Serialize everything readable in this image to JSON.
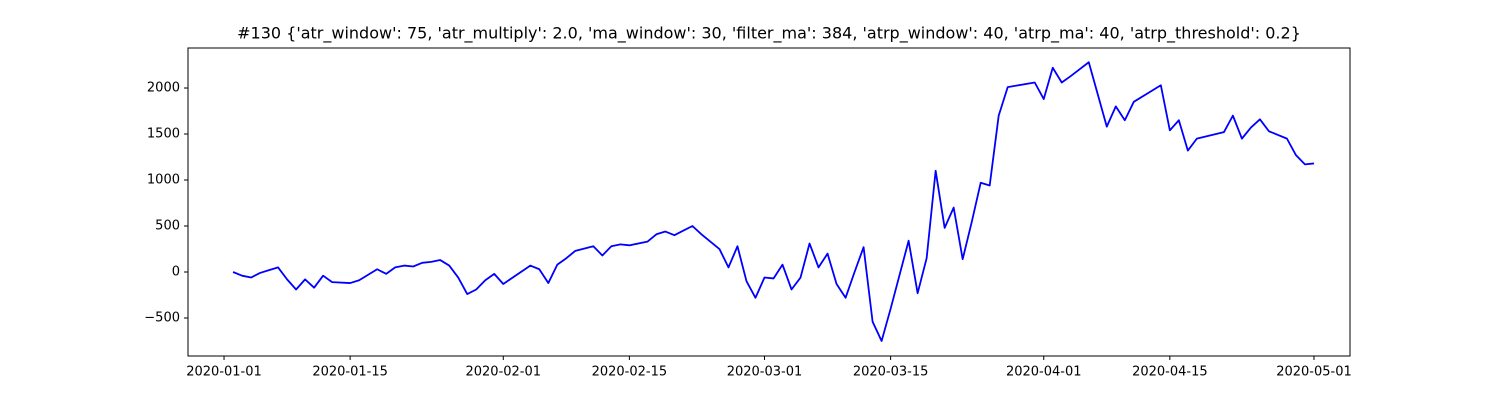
{
  "chart_data": {
    "type": "line",
    "title": "#130 {'atr_window': 75, 'atr_multiply': 2.0, 'ma_window': 30, 'filter_ma': 384, 'atrp_window': 40, 'atrp_ma': 40, 'atrp_threshold': 0.2}",
    "x": [
      "2020-01-02",
      "2020-01-03",
      "2020-01-04",
      "2020-01-05",
      "2020-01-06",
      "2020-01-07",
      "2020-01-08",
      "2020-01-09",
      "2020-01-10",
      "2020-01-11",
      "2020-01-12",
      "2020-01-13",
      "2020-01-15",
      "2020-01-16",
      "2020-01-17",
      "2020-01-18",
      "2020-01-19",
      "2020-01-20",
      "2020-01-21",
      "2020-01-22",
      "2020-01-23",
      "2020-01-24",
      "2020-01-25",
      "2020-01-26",
      "2020-01-27",
      "2020-01-28",
      "2020-01-29",
      "2020-01-30",
      "2020-01-31",
      "2020-02-01",
      "2020-02-04",
      "2020-02-05",
      "2020-02-06",
      "2020-02-07",
      "2020-02-08",
      "2020-02-09",
      "2020-02-11",
      "2020-02-12",
      "2020-02-13",
      "2020-02-14",
      "2020-02-15",
      "2020-02-17",
      "2020-02-18",
      "2020-02-19",
      "2020-02-20",
      "2020-02-21",
      "2020-02-22",
      "2020-02-23",
      "2020-02-25",
      "2020-02-26",
      "2020-02-27",
      "2020-02-28",
      "2020-02-29",
      "2020-03-01",
      "2020-03-02",
      "2020-03-03",
      "2020-03-04",
      "2020-03-05",
      "2020-03-06",
      "2020-03-07",
      "2020-03-08",
      "2020-03-09",
      "2020-03-10",
      "2020-03-11",
      "2020-03-12",
      "2020-03-13",
      "2020-03-14",
      "2020-03-15",
      "2020-03-17",
      "2020-03-18",
      "2020-03-19",
      "2020-03-20",
      "2020-03-21",
      "2020-03-22",
      "2020-03-23",
      "2020-03-24",
      "2020-03-25",
      "2020-03-26",
      "2020-03-27",
      "2020-03-28",
      "2020-03-31",
      "2020-04-01",
      "2020-04-02",
      "2020-04-03",
      "2020-04-04",
      "2020-04-06",
      "2020-04-08",
      "2020-04-09",
      "2020-04-10",
      "2020-04-11",
      "2020-04-14",
      "2020-04-15",
      "2020-04-16",
      "2020-04-17",
      "2020-04-18",
      "2020-04-21",
      "2020-04-22",
      "2020-04-23",
      "2020-04-24",
      "2020-04-25",
      "2020-04-26",
      "2020-04-28",
      "2020-04-29",
      "2020-04-30",
      "2020-05-01"
    ],
    "series": [
      {
        "color": "#0000ff",
        "values": [
          0,
          -40,
          -60,
          -10,
          20,
          50,
          -80,
          -190,
          -80,
          -170,
          -40,
          -110,
          -120,
          -90,
          -30,
          30,
          -20,
          50,
          70,
          60,
          100,
          110,
          130,
          70,
          -60,
          -240,
          -190,
          -90,
          -20,
          -130,
          70,
          30,
          -120,
          80,
          150,
          230,
          280,
          180,
          280,
          300,
          290,
          330,
          410,
          440,
          400,
          450,
          500,
          410,
          250,
          50,
          280,
          -100,
          -280,
          -60,
          -70,
          80,
          -190,
          -60,
          310,
          50,
          200,
          -130,
          -280,
          0,
          270,
          -540,
          -750,
          -400,
          340,
          -230,
          150,
          1100,
          480,
          700,
          140,
          540,
          970,
          940,
          1700,
          2010,
          2060,
          1880,
          2220,
          2060,
          2130,
          2280,
          1580,
          1800,
          1650,
          1850,
          2030,
          1540,
          1650,
          1320,
          1450,
          1520,
          1700,
          1450,
          1570,
          1660,
          1530,
          1450,
          1270,
          1170,
          1180
        ]
      }
    ],
    "xlim": [
      "2019-12-28",
      "2020-05-05"
    ],
    "xticks": [
      "2020-01-01",
      "2020-01-15",
      "2020-02-01",
      "2020-02-15",
      "2020-03-01",
      "2020-03-15",
      "2020-04-01",
      "2020-04-15",
      "2020-05-01"
    ],
    "ylim": [
      -913,
      2435
    ],
    "yticks": [
      {
        "value": -500,
        "label": "−500"
      },
      0,
      500,
      1000,
      1500,
      2000
    ],
    "grid": false
  }
}
